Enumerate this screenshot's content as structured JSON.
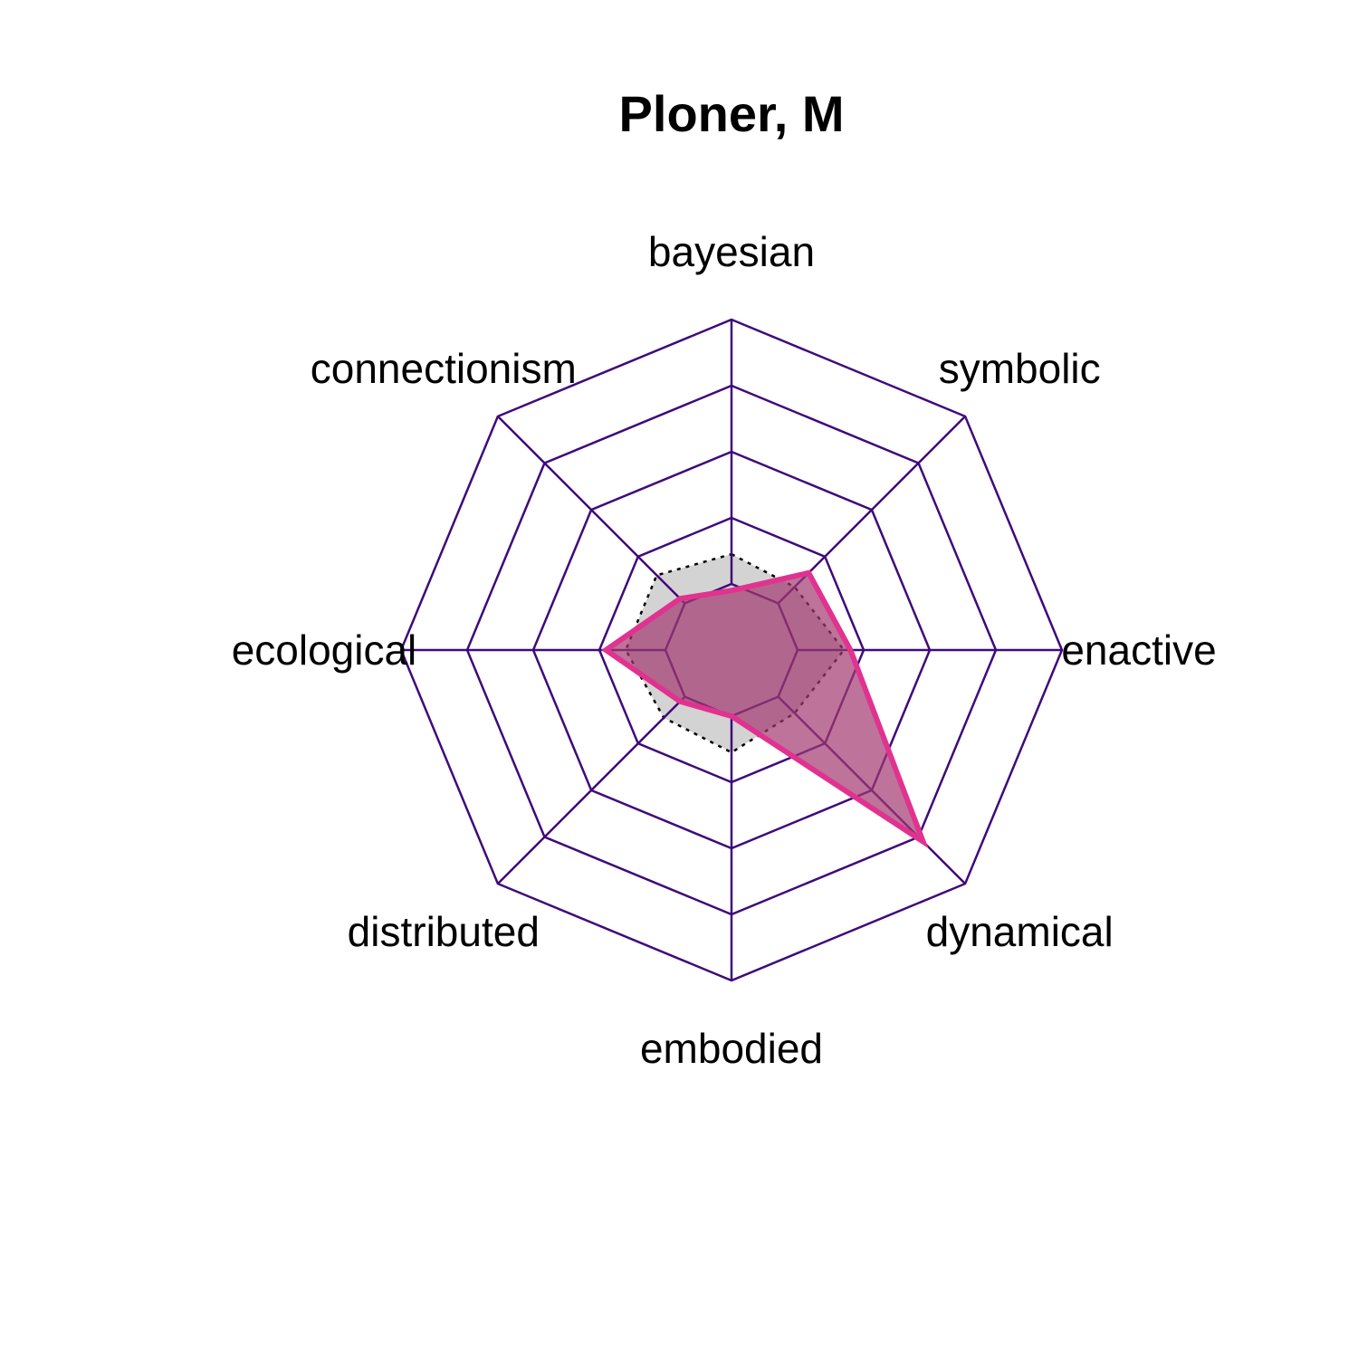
{
  "chart_data": {
    "type": "radar",
    "title": "Ploner, M",
    "axes": [
      "bayesian",
      "symbolic",
      "enactive",
      "dynamical",
      "embodied",
      "distributed",
      "ecological",
      "connectionism"
    ],
    "range": [
      0,
      1
    ],
    "grid_levels": 5,
    "series": [
      {
        "values": [
          0.18,
          0.33,
          0.36,
          0.82,
          0.2,
          0.22,
          0.38,
          0.22
        ]
      },
      {
        "values": [
          0.29,
          0.27,
          0.34,
          0.27,
          0.31,
          0.29,
          0.32,
          0.32
        ]
      }
    ],
    "colors": {
      "grid": "#3f0a7a",
      "series_line": "#e0338f",
      "series_fill": "#a3396f",
      "reference_fill": "#d3d3d3",
      "reference_line": "#000000",
      "text": "#000000"
    }
  }
}
